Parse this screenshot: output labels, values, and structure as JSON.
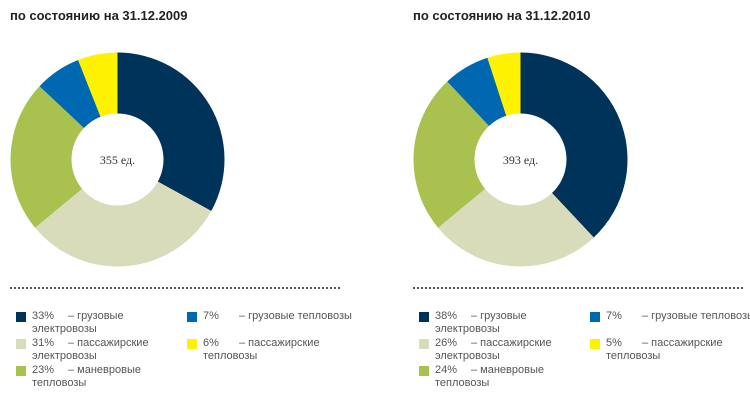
{
  "colors": {
    "cargo_electric": "#00335a",
    "passenger_electric": "#d8dcba",
    "shunting": "#a8c14f",
    "cargo_diesel": "#0068b0",
    "passenger_diesel": "#fff200"
  },
  "chart_data": [
    {
      "type": "pie",
      "title": "по состоянию на 31.12.2009",
      "center_label": "355 ед.",
      "slices": [
        {
          "label": "грузовые электровозы",
          "pct_label": "33%",
          "value": 33,
          "color": "#00335a"
        },
        {
          "label": "пассажирские электровозы",
          "pct_label": "31%",
          "value": 31,
          "color": "#d8dcba"
        },
        {
          "label": "маневровые тепловозы",
          "pct_label": "23%",
          "value": 23,
          "color": "#a8c14f"
        },
        {
          "label": "грузовые тепловозы",
          "pct_label": "7%",
          "value": 7,
          "color": "#0068b0"
        },
        {
          "label": "пассажирские тепловозы",
          "pct_label": "6%",
          "value": 6,
          "color": "#fff200"
        }
      ],
      "legend": [
        {
          "pct": "33%",
          "dash": "–",
          "text": "грузовые электровозы"
        },
        {
          "pct": "31%",
          "dash": "–",
          "text": "пассажирские электровозы"
        },
        {
          "pct": "23%",
          "dash": "–",
          "text": "маневровые тепловозы"
        },
        {
          "pct": "7%",
          "dash": "–",
          "text": "грузовые тепловозы"
        },
        {
          "pct": "6%",
          "dash": "–",
          "text": "пассажирские тепловозы"
        }
      ]
    },
    {
      "type": "pie",
      "title": "по состоянию на 31.12.2010",
      "center_label": "393 ед.",
      "slices": [
        {
          "label": "грузовые электровозы",
          "pct_label": "38%",
          "value": 38,
          "color": "#00335a"
        },
        {
          "label": "пассажирские электровозы",
          "pct_label": "26%",
          "value": 26,
          "color": "#d8dcba"
        },
        {
          "label": "маневровые тепловозы",
          "pct_label": "24%",
          "value": 24,
          "color": "#a8c14f"
        },
        {
          "label": "грузовые тепловозы",
          "pct_label": "7%",
          "value": 7,
          "color": "#0068b0"
        },
        {
          "label": "пассажирские тепловозы",
          "pct_label": "5%",
          "value": 5,
          "color": "#fff200"
        }
      ],
      "legend": [
        {
          "pct": "38%",
          "dash": "–",
          "text": "грузовые электровозы"
        },
        {
          "pct": "26%",
          "dash": "–",
          "text": "пассажирские электровозы"
        },
        {
          "pct": "24%",
          "dash": "–",
          "text": "маневровые тепловозы"
        },
        {
          "pct": "7%",
          "dash": "–",
          "text": "грузовые тепловозы"
        },
        {
          "pct": "5%",
          "dash": "–",
          "text": "пассажирские тепловозы"
        }
      ]
    }
  ]
}
